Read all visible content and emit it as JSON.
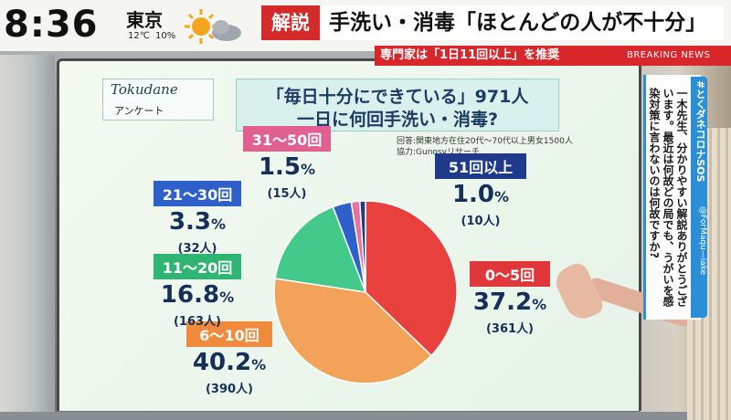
{
  "header": {
    "time": "8:36",
    "city": "東京",
    "temperature": "12℃",
    "rain_chance": "10%",
    "weather_icon": "sun-cloud-icon",
    "section_label": "解説",
    "headline": "手洗い・消毒「ほとんどの人が不十分」",
    "sub_headline": "専門家は「1日11回以上」を推奨",
    "breaking": "BREAKING NEWS"
  },
  "board": {
    "logo_text": "Tokudane",
    "logo_sub": "アンケート",
    "question_line1": "「毎日十分にできている」971人",
    "question_line2": "一日に何回手洗い・消毒?",
    "source_line1": "回答:関東地方在住20代〜70代以上男女1500人",
    "source_line2": "協力:Gunosyリサーチ"
  },
  "tweet": {
    "hashtag": "#とくダネコロナSOS",
    "handle": "@ForMaqu—iake",
    "text": "一木先生、分かりやすい解説ありがとうございます。最近は何故どの局でも、うがいを感染対策に言わないのは何故ですか?"
  },
  "chart_data": {
    "type": "pie",
    "title": "「毎日十分にできている」971人 一日に何回手洗い・消毒?",
    "slices": [
      {
        "label": "0〜5回",
        "percent": "37.2",
        "count": "(361人)",
        "value": 37.2,
        "color": "#e8403d",
        "label_color": "#e0383a"
      },
      {
        "label": "6〜10回",
        "percent": "40.2",
        "count": "(390人)",
        "value": 40.2,
        "color": "#f3a25a",
        "label_color": "#f08a3c"
      },
      {
        "label": "11〜20回",
        "percent": "16.8",
        "count": "(163人)",
        "value": 16.8,
        "color": "#43c98a",
        "label_color": "#2fb572"
      },
      {
        "label": "21〜30回",
        "percent": "3.3",
        "count": "(32人)",
        "value": 3.3,
        "color": "#2f5fc8",
        "label_color": "#2f5fc8"
      },
      {
        "label": "31〜50回",
        "percent": "1.5",
        "count": "(15人)",
        "value": 1.5,
        "color": "#e6739e",
        "label_color": "#e0608f"
      },
      {
        "label": "51回以上",
        "percent": "1.0",
        "count": "(10人)",
        "value": 1.0,
        "color": "#223a80",
        "label_color": "#1f3a8a"
      }
    ],
    "percent_unit": "%"
  }
}
